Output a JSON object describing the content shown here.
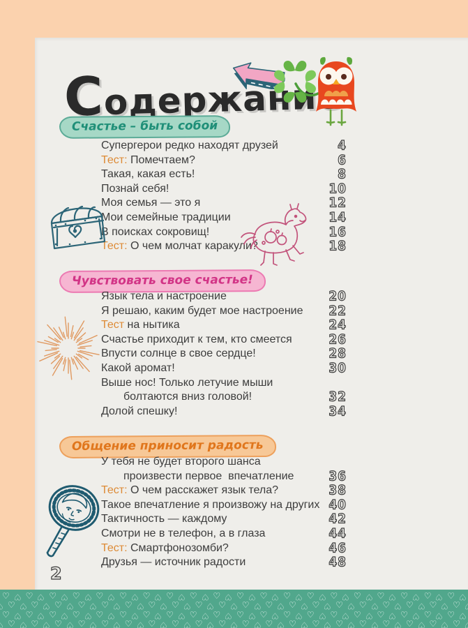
{
  "page": {
    "title": "Содержание",
    "page_number": "2"
  },
  "colors": {
    "border_peach": "#fbd2ae",
    "paper": "#efeeea",
    "body_text": "#3d3d3d",
    "test_prefix": "#dd8a35",
    "page_number_ink": "#3a3a3a",
    "hearts_strip_bg": "#51a78c",
    "heart_outline": "#ffffff",
    "doodle_ink_teal": "#2c6577",
    "doodle_ink_pink": "#c2537b",
    "doodle_ink_orange": "#e09a62",
    "owl_body": "#e8471f",
    "clover_green": "#66b446",
    "arrow_pink": "#f2a6c4"
  },
  "glyphs": {
    "heart": "♡"
  },
  "sections": [
    {
      "label": "Счастье – быть собой",
      "colors": {
        "bg": "#a6d8c6",
        "text": "#1f8f78",
        "border": "#5cab97"
      },
      "entries": [
        {
          "prefix": "",
          "text": "Супергерои редко находят друзей",
          "page": "4"
        },
        {
          "prefix": "Тест:",
          "text": " Помечтаем?",
          "page": "6"
        },
        {
          "prefix": "",
          "text": "Такая, какая есть!",
          "page": "8"
        },
        {
          "prefix": "",
          "text": "Познай себя!",
          "page": "10"
        },
        {
          "prefix": "",
          "text": "Моя семья — это я",
          "page": "12"
        },
        {
          "prefix": "",
          "text": "Мои семейные традиции",
          "page": "14"
        },
        {
          "prefix": "",
          "text": "В поисках сокровищ!",
          "page": "16"
        },
        {
          "prefix": "Тест:",
          "text": " О чем молчат каракули?",
          "page": "18"
        }
      ]
    },
    {
      "label": "Чувствовать свое счастье!",
      "colors": {
        "bg": "#f6b6d2",
        "text": "#d23486",
        "border": "#ec7ab2"
      },
      "entries": [
        {
          "prefix": "",
          "text": "Язык тела и настроение",
          "page": "20"
        },
        {
          "prefix": "",
          "text": "Я решаю, каким будет мое настроение",
          "page": "22"
        },
        {
          "prefix": "Тест",
          "text": " на нытика",
          "page": "24"
        },
        {
          "prefix": "",
          "text": "Счастье приходит к тем, кто смеется",
          "page": "26"
        },
        {
          "prefix": "",
          "text": "Впусти солнце в свое сердце!",
          "page": "28"
        },
        {
          "prefix": "",
          "text": "Какой аромат!",
          "page": "30"
        },
        {
          "prefix": "",
          "text": "Выше нос! Только летучие мыши",
          "text2": "болтаются вниз головой!",
          "page": "32"
        },
        {
          "prefix": "",
          "text": "Долой спешку!",
          "page": "34"
        }
      ]
    },
    {
      "label": "Общение приносит радость",
      "colors": {
        "bg": "#f7c897",
        "text": "#e0761c",
        "border": "#eda05c"
      },
      "entries": [
        {
          "prefix": "",
          "text": "У тебя не будет второго шанса",
          "text2": "произвести первое  впечатление",
          "page": "36"
        },
        {
          "prefix": "Тест:",
          "text": " О чем расскажет язык тела?",
          "page": "38"
        },
        {
          "prefix": "",
          "text": "Такое впечатление я произвожу на других",
          "page": "40"
        },
        {
          "prefix": "",
          "text": "Тактичность — каждому",
          "page": "42"
        },
        {
          "prefix": "",
          "text": "Смотри не в телефон, а в глаза",
          "page": "44"
        },
        {
          "prefix": "Тест:",
          "text": " Смартфонозомби?",
          "page": "46"
        },
        {
          "prefix": "",
          "text": "Друзья — источник радости",
          "page": "48"
        }
      ]
    }
  ]
}
